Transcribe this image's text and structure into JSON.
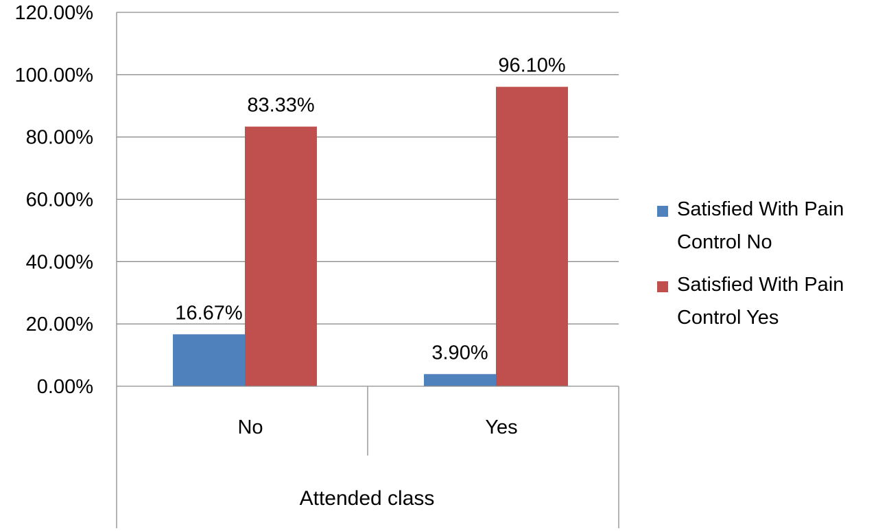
{
  "chart_data": {
    "type": "bar",
    "categories": [
      "No",
      "Yes"
    ],
    "series": [
      {
        "name": "Satisfied With Pain Control No",
        "legend_lines": [
          "Satisfied With Pain",
          "Control No"
        ],
        "color": "#4F81BD",
        "values": [
          16.67,
          3.9
        ],
        "labels": [
          "16.67%",
          "3.90%"
        ]
      },
      {
        "name": "Satisfied With Pain Control Yes",
        "legend_lines": [
          "Satisfied With Pain",
          "Control Yes"
        ],
        "color": "#C0504D",
        "values": [
          83.33,
          96.1
        ],
        "labels": [
          "83.33%",
          "96.10%"
        ]
      }
    ],
    "title": "",
    "xlabel": "Attended class",
    "ylabel": "",
    "ylim": [
      0,
      120
    ],
    "yticks": [
      0,
      20,
      40,
      60,
      80,
      100,
      120
    ],
    "ytick_labels": [
      "0.00%",
      "20.00%",
      "40.00%",
      "60.00%",
      "80.00%",
      "100.00%",
      "120.00%"
    ],
    "grid": true,
    "legend_position": "right"
  }
}
